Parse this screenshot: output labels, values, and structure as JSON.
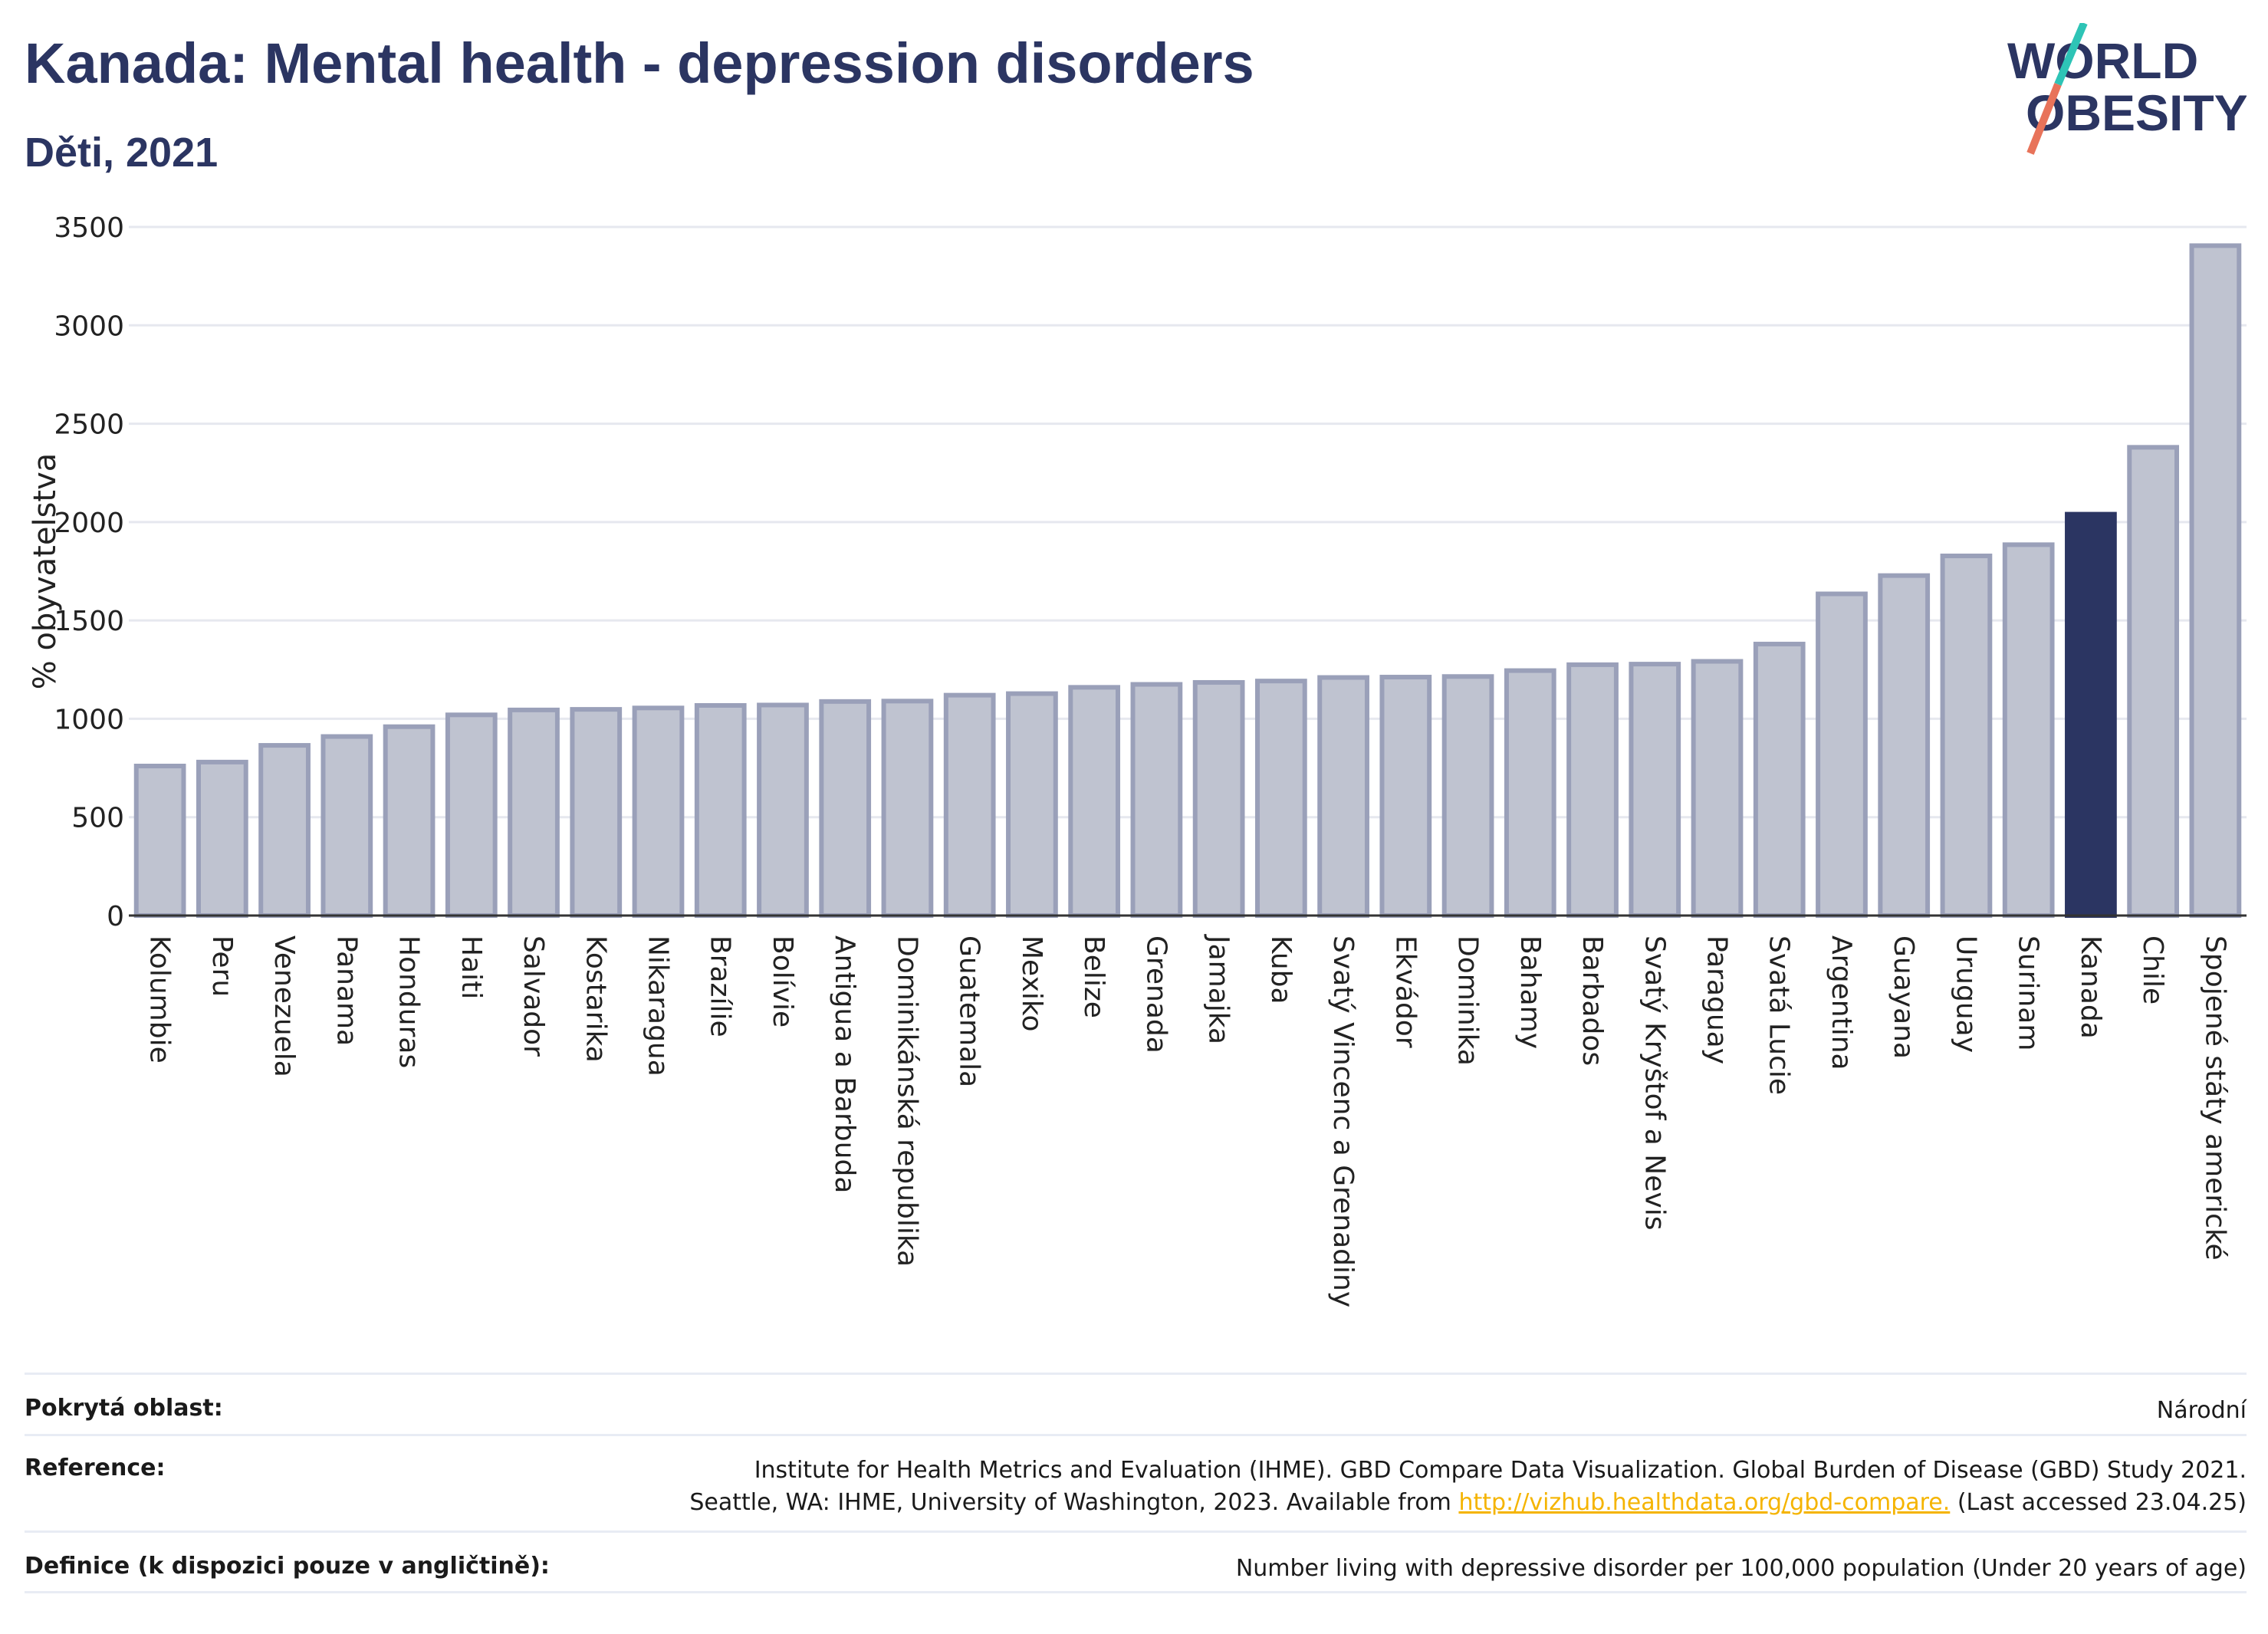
{
  "title": "Kanada: Mental health - depression disorders",
  "subtitle": "Děti, 2021",
  "logo": {
    "line1": "WORLD",
    "line2": "OBESITY"
  },
  "colors": {
    "bar_default": "#bfc3d0",
    "bar_border": "#9aa0b9",
    "bar_highlight": "#2b3562",
    "text": "#2b3562",
    "link": "#f5b400",
    "logo_teal": "#2ec4b6",
    "logo_red": "#e8735a"
  },
  "chart_data": {
    "type": "bar",
    "ylabel": "% obyvatelstva",
    "ylim": [
      0,
      3500
    ],
    "yticks": [
      0,
      500,
      1000,
      1500,
      2000,
      2500,
      3000,
      3500
    ],
    "grid": true,
    "highlight": "Kanada",
    "categories": [
      "Kolumbie",
      "Peru",
      "Venezuela",
      "Panama",
      "Honduras",
      "Haiti",
      "Salvador",
      "Kostarika",
      "Nikaragua",
      "Brazílie",
      "Bolívie",
      "Antigua a Barbuda",
      "Dominikánská republika",
      "Guatemala",
      "Mexiko",
      "Belize",
      "Grenada",
      "Jamajka",
      "Kuba",
      "Svatý Vincenc a Grenadiny",
      "Ekvádor",
      "Dominika",
      "Bahamy",
      "Barbados",
      "Svatý Kryštof a Nevis",
      "Paraguay",
      "Svatá Lucie",
      "Argentina",
      "Guayana",
      "Uruguay",
      "Surinam",
      "Kanada",
      "Chile",
      "Spojené státy americké"
    ],
    "values": [
      760,
      780,
      865,
      910,
      960,
      1020,
      1045,
      1048,
      1055,
      1068,
      1070,
      1088,
      1090,
      1120,
      1128,
      1160,
      1175,
      1185,
      1192,
      1210,
      1212,
      1215,
      1245,
      1275,
      1278,
      1292,
      1380,
      1635,
      1728,
      1828,
      1885,
      2040,
      2380,
      3405
    ]
  },
  "footer": {
    "coverage_label": "Pokrytá oblast:",
    "coverage_value": "Národní",
    "reference_label": "Reference:",
    "reference_line1": "Institute for Health Metrics and Evaluation (IHME). GBD Compare Data Visualization. Global Burden of Disease (GBD) Study 2021.",
    "reference_line2_pre": "Seattle, WA: IHME, University of Washington, 2023. Available from ",
    "reference_link": "http://vizhub.healthdata.org/gbd-compare.",
    "reference_line2_post": " (Last accessed 23.04.25)",
    "definition_label": "Definice (k dispozici pouze v angličtině):",
    "definition_value": "Number living with depressive disorder per 100,000 population (Under 20 years of age)"
  }
}
